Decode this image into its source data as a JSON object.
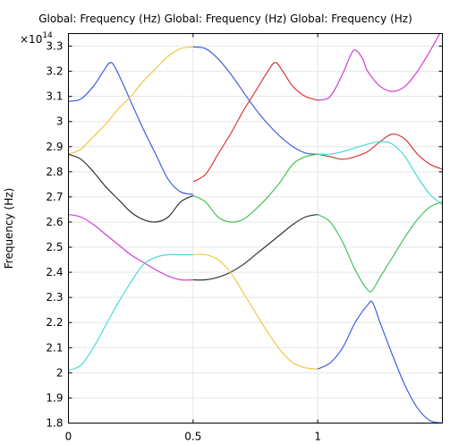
{
  "chart_data": {
    "type": "line",
    "title": "Global: Frequency (Hz)  Global: Frequency (Hz)  Global: Frequency (Hz)",
    "xlabel": "",
    "ylabel": "Frequency (Hz)",
    "y_multiplier": "×10",
    "y_exponent": "14",
    "xlim": [
      0,
      1.5
    ],
    "ylim": [
      1.8,
      3.35
    ],
    "x_ticks": [
      0,
      0.5,
      1
    ],
    "x_tick_labels": [
      "0",
      "0.5",
      "1"
    ],
    "y_ticks": [
      1.8,
      1.9,
      2.0,
      2.1,
      2.2,
      2.3,
      2.4,
      2.5,
      2.6,
      2.7,
      2.8,
      2.9,
      3.0,
      3.1,
      3.2,
      3.3
    ],
    "y_tick_labels": [
      "1.8",
      "1.9",
      "2",
      "2.1",
      "2.2",
      "2.3",
      "2.4",
      "2.5",
      "2.6",
      "2.7",
      "2.8",
      "2.9",
      "3",
      "3.1",
      "3.2",
      "3.3"
    ],
    "grid": true,
    "series": [
      {
        "color": "#3f5fe0",
        "x": [
          0,
          0.05,
          0.1,
          0.14,
          0.17,
          0.2,
          0.25,
          0.3,
          0.35,
          0.4,
          0.45,
          0.5
        ],
        "y": [
          3.08,
          3.09,
          3.14,
          3.2,
          3.235,
          3.19,
          3.08,
          2.97,
          2.87,
          2.77,
          2.72,
          2.71
        ]
      },
      {
        "color": "#f2c744",
        "x": [
          0,
          0.05,
          0.1,
          0.15,
          0.2,
          0.25,
          0.3,
          0.35,
          0.4,
          0.45,
          0.5
        ],
        "y": [
          2.87,
          2.89,
          2.94,
          2.99,
          3.05,
          3.1,
          3.16,
          3.21,
          3.26,
          3.29,
          3.297
        ]
      },
      {
        "color": "#3f5fe0",
        "x": [
          0.5,
          0.55,
          0.6,
          0.65,
          0.7,
          0.75,
          0.8,
          0.85,
          0.9,
          0.95,
          1.0
        ],
        "y": [
          3.297,
          3.29,
          3.25,
          3.19,
          3.12,
          3.05,
          2.99,
          2.94,
          2.9,
          2.875,
          2.87
        ]
      },
      {
        "color": "#d93a3a",
        "x": [
          0.5,
          0.55,
          0.6,
          0.65,
          0.7,
          0.75,
          0.8,
          0.83,
          0.86,
          0.9,
          0.95,
          1.0
        ],
        "y": [
          2.76,
          2.79,
          2.87,
          2.95,
          3.04,
          3.12,
          3.2,
          3.235,
          3.2,
          3.14,
          3.1,
          3.085
        ]
      },
      {
        "color": "#333333",
        "x": [
          0,
          0.05,
          0.1,
          0.15,
          0.2,
          0.25,
          0.3,
          0.35,
          0.4,
          0.45,
          0.5
        ],
        "y": [
          2.87,
          2.85,
          2.8,
          2.74,
          2.69,
          2.64,
          2.61,
          2.6,
          2.62,
          2.68,
          2.705
        ]
      },
      {
        "color": "#45c45a",
        "x": [
          0.5,
          0.55,
          0.6,
          0.65,
          0.7,
          0.75,
          0.8,
          0.85,
          0.9,
          0.95,
          1.0
        ],
        "y": [
          2.705,
          2.68,
          2.62,
          2.6,
          2.61,
          2.65,
          2.7,
          2.76,
          2.83,
          2.86,
          2.87
        ]
      },
      {
        "color": "#333333",
        "x": [
          0.5,
          0.55,
          0.6,
          0.65,
          0.7,
          0.75,
          0.8,
          0.85,
          0.9,
          0.95,
          1.0
        ],
        "y": [
          2.37,
          2.37,
          2.38,
          2.4,
          2.43,
          2.47,
          2.51,
          2.55,
          2.59,
          2.62,
          2.63
        ]
      },
      {
        "color": "#d43fd4",
        "x": [
          0,
          0.05,
          0.1,
          0.15,
          0.2,
          0.25,
          0.3,
          0.35,
          0.4,
          0.45,
          0.5
        ],
        "y": [
          2.63,
          2.62,
          2.59,
          2.55,
          2.51,
          2.47,
          2.44,
          2.41,
          2.385,
          2.37,
          2.37
        ]
      },
      {
        "color": "#45dcd6",
        "x": [
          0,
          0.05,
          0.1,
          0.15,
          0.2,
          0.25,
          0.3,
          0.35,
          0.4,
          0.45,
          0.5
        ],
        "y": [
          2.01,
          2.03,
          2.1,
          2.19,
          2.28,
          2.36,
          2.43,
          2.46,
          2.47,
          2.47,
          2.47
        ]
      },
      {
        "color": "#f2c744",
        "x": [
          0.5,
          0.55,
          0.6,
          0.65,
          0.7,
          0.75,
          0.8,
          0.85,
          0.9,
          0.95,
          1.0
        ],
        "y": [
          2.47,
          2.47,
          2.45,
          2.4,
          2.32,
          2.24,
          2.16,
          2.09,
          2.04,
          2.02,
          2.015
        ]
      },
      {
        "color": "#d43fd4",
        "x": [
          1.0,
          1.05,
          1.1,
          1.13,
          1.15,
          1.18,
          1.2,
          1.25,
          1.3,
          1.35,
          1.4,
          1.45,
          1.5
        ],
        "y": [
          3.085,
          3.1,
          3.19,
          3.26,
          3.285,
          3.25,
          3.2,
          3.14,
          3.12,
          3.14,
          3.2,
          3.28,
          3.37
        ]
      },
      {
        "color": "#d93a3a",
        "x": [
          1.0,
          1.05,
          1.1,
          1.15,
          1.2,
          1.25,
          1.3,
          1.35,
          1.4,
          1.45,
          1.5
        ],
        "y": [
          2.87,
          2.86,
          2.85,
          2.86,
          2.88,
          2.92,
          2.95,
          2.93,
          2.87,
          2.83,
          2.81
        ]
      },
      {
        "color": "#45dcd6",
        "x": [
          1.0,
          1.05,
          1.1,
          1.15,
          1.2,
          1.25,
          1.3,
          1.35,
          1.4,
          1.45,
          1.5
        ],
        "y": [
          2.87,
          2.87,
          2.88,
          2.895,
          2.91,
          2.92,
          2.91,
          2.86,
          2.78,
          2.71,
          2.67
        ]
      },
      {
        "color": "#45c45a",
        "x": [
          1.0,
          1.05,
          1.1,
          1.15,
          1.2,
          1.22,
          1.25,
          1.3,
          1.35,
          1.4,
          1.45,
          1.5
        ],
        "y": [
          2.63,
          2.6,
          2.52,
          2.41,
          2.33,
          2.33,
          2.38,
          2.46,
          2.54,
          2.61,
          2.66,
          2.68
        ]
      },
      {
        "color": "#3f5fe0",
        "x": [
          1.0,
          1.05,
          1.1,
          1.15,
          1.2,
          1.22,
          1.25,
          1.3,
          1.35,
          1.4,
          1.45,
          1.5
        ],
        "y": [
          2.015,
          2.04,
          2.1,
          2.2,
          2.27,
          2.28,
          2.2,
          2.07,
          1.95,
          1.86,
          1.81,
          1.8
        ]
      }
    ]
  }
}
